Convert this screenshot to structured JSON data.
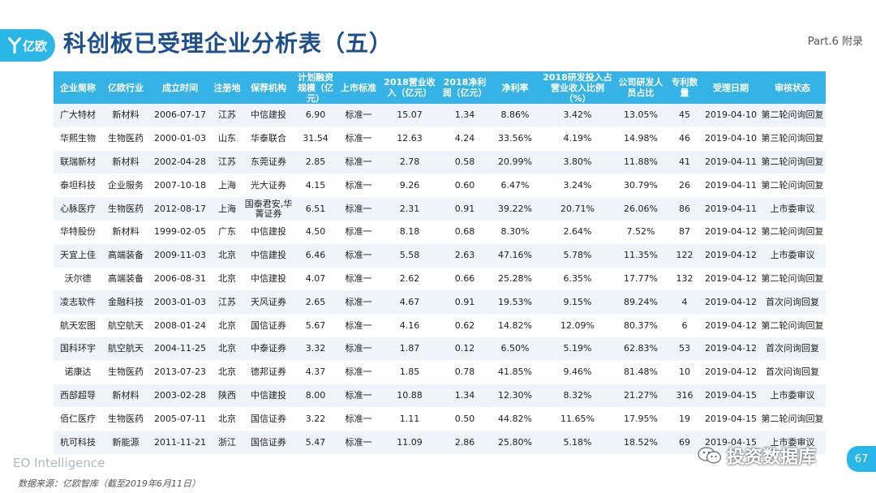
{
  "header": {
    "logo_text": "亿欧",
    "title": "科创板已受理企业分析表（五）",
    "part": "Part.6 附录"
  },
  "table": {
    "columns": [
      "企业简称",
      "亿欧行业",
      "成立时间",
      "注册地",
      "保荐机构",
      "计划融资规模（亿元）",
      "上市标准",
      "2018营业收入（亿元）",
      "2018净利润（亿元）",
      "净利率",
      "2018研发投入占营业收入比例（%）",
      "公司研发人员占比",
      "专利数量",
      "受理日期",
      "审核状态"
    ],
    "rows": [
      [
        "广大特材",
        "新材料",
        "2006-07-17",
        "江苏",
        "中信建投",
        "6.90",
        "标准一",
        "15.07",
        "1.34",
        "8.86%",
        "3.42%",
        "13.05%",
        "45",
        "2019-04-10",
        "第二轮问询回复"
      ],
      [
        "华熙生物",
        "生物医药",
        "2000-01-03",
        "山东",
        "华泰联合",
        "31.54",
        "标准一",
        "12.63",
        "4.24",
        "33.56%",
        "4.19%",
        "14.98%",
        "46",
        "2019-04-10",
        "第三轮问询回复"
      ],
      [
        "联瑞新材",
        "新材料",
        "2002-04-28",
        "江苏",
        "东莞证券",
        "2.85",
        "标准一",
        "2.78",
        "0.58",
        "20.99%",
        "3.80%",
        "11.88%",
        "41",
        "2019-04-11",
        "第二轮问询回复"
      ],
      [
        "泰坦科技",
        "企业服务",
        "2007-10-18",
        "上海",
        "光大证券",
        "4.15",
        "标准一",
        "9.26",
        "0.60",
        "6.47%",
        "3.24%",
        "30.79%",
        "26",
        "2019-04-11",
        "第二轮问询回复"
      ],
      [
        "心脉医疗",
        "生物医药",
        "2012-08-17",
        "上海",
        "国泰君安,华菁证券",
        "6.51",
        "标准一",
        "2.31",
        "0.91",
        "39.22%",
        "20.71%",
        "26.06%",
        "86",
        "2019-04-11",
        "上市委审议"
      ],
      [
        "华特股份",
        "新材料",
        "1999-02-05",
        "广东",
        "中信建投",
        "4.50",
        "标准一",
        "8.18",
        "0.68",
        "8.30%",
        "2.64%",
        "7.52%",
        "87",
        "2019-04-12",
        "第二轮问询回复"
      ],
      [
        "天宜上佳",
        "高端装备",
        "2009-11-03",
        "北京",
        "中信建投",
        "6.46",
        "标准一",
        "5.58",
        "2.63",
        "47.16%",
        "5.78%",
        "11.35%",
        "122",
        "2019-04-12",
        "上市委审议"
      ],
      [
        "沃尔德",
        "高端装备",
        "2006-08-31",
        "北京",
        "中信建投",
        "4.07",
        "标准一",
        "2.62",
        "0.66",
        "25.28%",
        "6.35%",
        "17.77%",
        "132",
        "2019-04-12",
        "第二轮问询回复"
      ],
      [
        "凌志软件",
        "金融科技",
        "2003-01-03",
        "江苏",
        "天风证券",
        "2.65",
        "标准一",
        "4.67",
        "0.91",
        "19.53%",
        "9.15%",
        "89.24%",
        "4",
        "2019-04-12",
        "首次问询回复"
      ],
      [
        "航天宏图",
        "航空航天",
        "2008-01-24",
        "北京",
        "国信证券",
        "5.67",
        "标准一",
        "4.16",
        "0.62",
        "14.82%",
        "12.09%",
        "80.37%",
        "6",
        "2019-04-12",
        "第二轮问询回复"
      ],
      [
        "国科环宇",
        "航空航天",
        "2004-11-25",
        "北京",
        "中泰证券",
        "3.32",
        "标准一",
        "1.87",
        "0.12",
        "6.50%",
        "5.19%",
        "62.83%",
        "53",
        "2019-04-12",
        "首次问询回复"
      ],
      [
        "诺康达",
        "生物医药",
        "2013-07-23",
        "北京",
        "德邦证券",
        "4.37",
        "标准一",
        "1.85",
        "0.78",
        "41.85%",
        "9.46%",
        "81.48%",
        "10",
        "2019-04-12",
        "首次问询回复"
      ],
      [
        "西部超导",
        "新材料",
        "2003-02-28",
        "陕西",
        "中信建投",
        "8.00",
        "标准一",
        "10.88",
        "1.34",
        "12.30%",
        "8.32%",
        "21.27%",
        "316",
        "2019-04-15",
        "上市委审议"
      ],
      [
        "佰仁医疗",
        "生物医药",
        "2005-07-11",
        "北京",
        "国信证券",
        "3.22",
        "标准一",
        "1.11",
        "0.50",
        "44.82%",
        "11.65%",
        "17.95%",
        "19",
        "2019-04-15",
        "第二轮问询回复"
      ],
      [
        "杭可科技",
        "新能源",
        "2011-11-21",
        "浙江",
        "国信证券",
        "5.47",
        "标准一",
        "11.09",
        "2.86",
        "25.80%",
        "5.18%",
        "18.52%",
        "69",
        "2019-04-15",
        "上市委审议"
      ]
    ]
  },
  "footer": {
    "brand": "EO Intelligence",
    "source": "数据来源：亿欧智库（截至2019年6月11日）",
    "watermark": "投资数据库",
    "page_number": "67"
  },
  "colors": {
    "accent": "#2bb6e8",
    "header_bg": "#36b3e6",
    "title": "#1e4f8a",
    "stripe": "#eef4fa"
  }
}
